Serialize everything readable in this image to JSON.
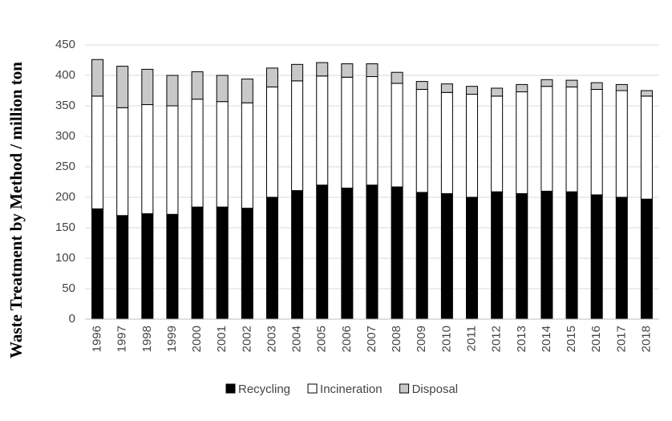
{
  "chart_data": {
    "type": "stacked_bar",
    "ylabel": "Waste Treatment by Method / million ton",
    "categories": [
      "1996",
      "1997",
      "1998",
      "1999",
      "2000",
      "2001",
      "2002",
      "2003",
      "2004",
      "2005",
      "2006",
      "2007",
      "2008",
      "2009",
      "2010",
      "2011",
      "2012",
      "2013",
      "2014",
      "2015",
      "2016",
      "2017",
      "2018"
    ],
    "series": [
      {
        "name": "Recycling",
        "color": "#000000",
        "values": [
          181,
          170,
          173,
          172,
          184,
          184,
          182,
          200,
          211,
          220,
          215,
          220,
          217,
          208,
          206,
          200,
          209,
          206,
          210,
          209,
          204,
          200,
          197
        ]
      },
      {
        "name": "Incineration",
        "color": "#ffffff",
        "values": [
          185,
          177,
          179,
          178,
          177,
          173,
          173,
          181,
          180,
          179,
          182,
          178,
          170,
          169,
          166,
          169,
          157,
          167,
          172,
          172,
          173,
          175,
          169
        ]
      },
      {
        "name": "Disposal",
        "color": "#c8c8c8",
        "values": [
          60,
          68,
          58,
          50,
          45,
          43,
          39,
          31,
          27,
          22,
          22,
          21,
          18,
          13,
          14,
          13,
          13,
          12,
          11,
          11,
          11,
          10,
          9
        ]
      }
    ],
    "ylim": [
      0,
      450
    ],
    "yticks": [
      0,
      50,
      100,
      150,
      200,
      250,
      300,
      350,
      400,
      450
    ],
    "grid": true,
    "legend": "bottom"
  }
}
